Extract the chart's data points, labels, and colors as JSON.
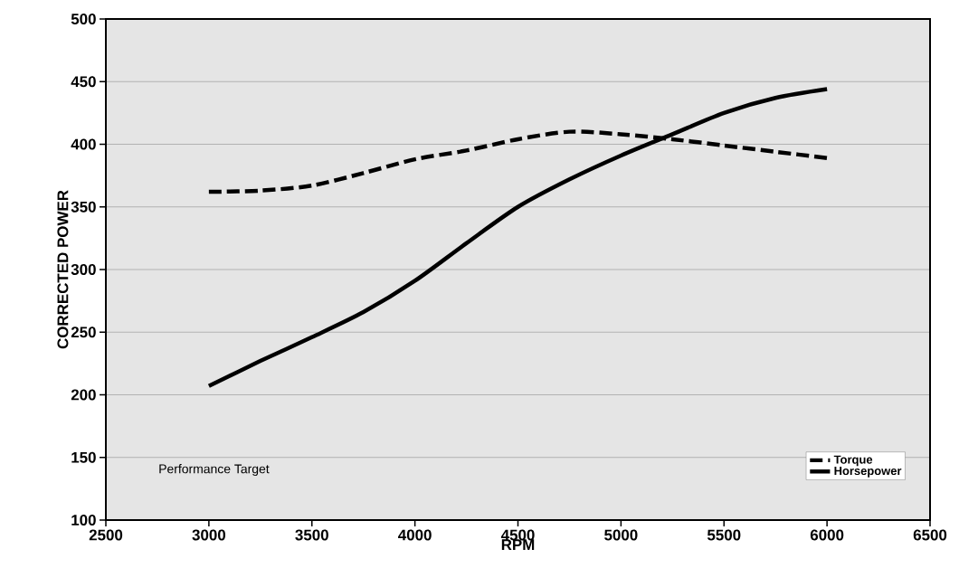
{
  "chart_data": {
    "type": "line",
    "xlabel": "RPM",
    "ylabel": "CORRECTED POWER",
    "x": [
      3000,
      3250,
      3500,
      3750,
      4000,
      4250,
      4500,
      4750,
      5000,
      5250,
      5500,
      5750,
      6000
    ],
    "series": [
      {
        "name": "Torque",
        "color": "#000000",
        "line_style": "dashed",
        "values": [
          362,
          363,
          367,
          377,
          388,
          395,
          404,
          410,
          408,
          404,
          399,
          394,
          389
        ]
      },
      {
        "name": "Horsepower",
        "color": "#000000",
        "line_style": "solid",
        "values": [
          207,
          227,
          246,
          266,
          291,
          321,
          350,
          372,
          391,
          408,
          425,
          437,
          444
        ]
      }
    ],
    "xlim": [
      2500,
      6500
    ],
    "xticks": [
      2500,
      3000,
      3500,
      4000,
      4500,
      5000,
      5500,
      6000,
      6500
    ],
    "ylim": [
      100,
      500
    ],
    "yticks": [
      100,
      150,
      200,
      250,
      300,
      350,
      400,
      450,
      500
    ],
    "grid": "y",
    "legend": "bottom right",
    "marker": "none",
    "annotations": [
      "Performance Target"
    ]
  }
}
